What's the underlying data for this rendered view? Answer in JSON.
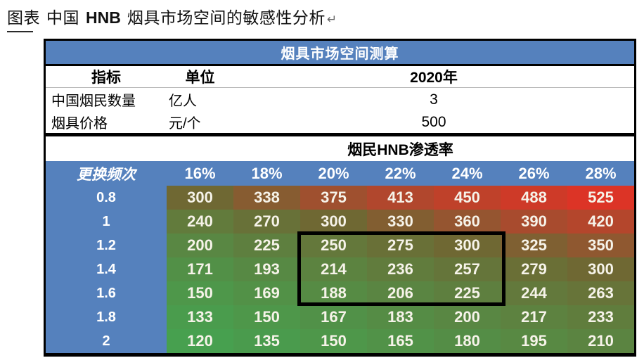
{
  "caption": {
    "prefix": "图表",
    "title_regular": "中国",
    "title_bold": "HNB",
    "title_rest": "烟具市场空间的敏感性分析",
    "return_mark": "↵"
  },
  "table": {
    "title": "烟具市场空间测算",
    "meta_header": {
      "indicator": "指标",
      "unit": "单位",
      "year": "2020年"
    },
    "assumptions": [
      {
        "indicator": "中国烟民数量",
        "unit": "亿人",
        "value": "3"
      },
      {
        "indicator": "烟具价格",
        "unit": "元/个",
        "value": "500"
      }
    ],
    "section_title": "烟民HNB渗透率",
    "corner_label": "更换频次"
  },
  "chart_data": {
    "type": "heatmap",
    "title": "烟具市场空间测算",
    "xlabel": "烟民HNB渗透率",
    "ylabel": "更换频次",
    "x": [
      "16%",
      "18%",
      "20%",
      "22%",
      "24%",
      "26%",
      "28%"
    ],
    "y": [
      "0.8",
      "1",
      "1.2",
      "1.4",
      "1.6",
      "1.8",
      "2"
    ],
    "values": [
      [
        300,
        338,
        375,
        413,
        450,
        488,
        525
      ],
      [
        240,
        270,
        300,
        330,
        360,
        390,
        420
      ],
      [
        200,
        225,
        250,
        275,
        300,
        325,
        350
      ],
      [
        171,
        193,
        214,
        236,
        257,
        279,
        300
      ],
      [
        150,
        169,
        188,
        206,
        225,
        244,
        263
      ],
      [
        133,
        150,
        167,
        183,
        200,
        217,
        233
      ],
      [
        120,
        135,
        150,
        165,
        180,
        195,
        210
      ]
    ],
    "value_range": [
      120,
      525
    ],
    "highlight_region": {
      "x_from": "20%",
      "x_to": "24%",
      "y_from": "1.2",
      "y_to": "1.6"
    },
    "legend": "color scale: green (low) → olive (mid) → red (high)"
  },
  "colors": {
    "header_blue": "#5581bd",
    "border_black": "#000000",
    "cell_text": "#f6f3e9",
    "heat_stops": [
      {
        "value": 120,
        "color": "#47a04f"
      },
      {
        "value": 300,
        "color": "#6f6833"
      },
      {
        "value": 390,
        "color": "#a84b2e"
      },
      {
        "value": 525,
        "color": "#dc3426"
      }
    ]
  }
}
